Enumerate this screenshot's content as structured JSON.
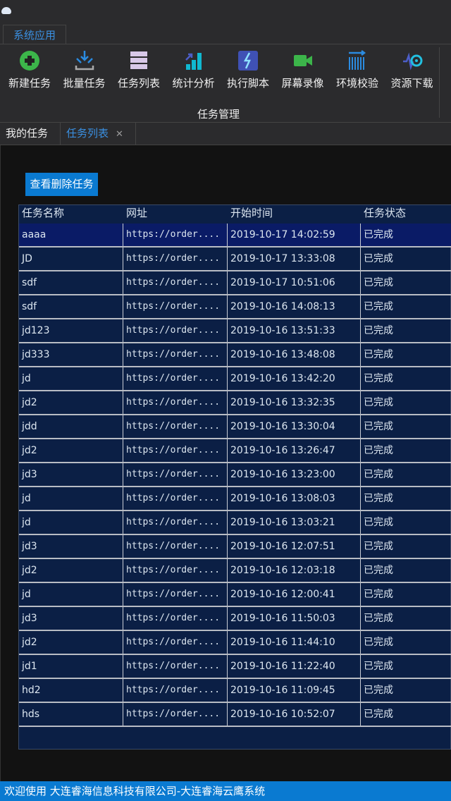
{
  "ribbon": {
    "tab": "系统应用",
    "group": "任务管理",
    "buttons": [
      {
        "label": "新建任务",
        "icon": "plus-circle-icon"
      },
      {
        "label": "批量任务",
        "icon": "batch-import-icon"
      },
      {
        "label": "任务列表",
        "icon": "list-icon"
      },
      {
        "label": "统计分析",
        "icon": "bar-chart-icon"
      },
      {
        "label": "执行脚本",
        "icon": "lightning-icon"
      },
      {
        "label": "屏幕录像",
        "icon": "video-camera-icon"
      },
      {
        "label": "环境校验",
        "icon": "check-env-icon"
      },
      {
        "label": "资源下载",
        "icon": "download-icon"
      }
    ]
  },
  "doc_tabs": [
    {
      "label": "我的任务"
    },
    {
      "label": "任务列表",
      "active": true
    }
  ],
  "delete_button": "查看删除任务",
  "table": {
    "columns": [
      "任务名称",
      "网址",
      "开始时间",
      "任务状态"
    ],
    "rows": [
      [
        "aaaa",
        "https://order....",
        "2019-10-17 14:02:59",
        "已完成"
      ],
      [
        "JD",
        "https://order....",
        "2019-10-17 13:33:08",
        "已完成"
      ],
      [
        "sdf",
        "https://order....",
        "2019-10-17 10:51:06",
        "已完成"
      ],
      [
        "sdf",
        "https://order....",
        "2019-10-16 14:08:13",
        "已完成"
      ],
      [
        "jd123",
        "https://order....",
        "2019-10-16 13:51:33",
        "已完成"
      ],
      [
        "jd333",
        "https://order....",
        "2019-10-16 13:48:08",
        "已完成"
      ],
      [
        "jd",
        "https://order....",
        "2019-10-16 13:42:20",
        "已完成"
      ],
      [
        "jd2",
        "https://order....",
        "2019-10-16 13:32:35",
        "已完成"
      ],
      [
        "jdd",
        "https://order....",
        "2019-10-16 13:30:04",
        "已完成"
      ],
      [
        "jd2",
        "https://order....",
        "2019-10-16 13:26:47",
        "已完成"
      ],
      [
        "jd3",
        "https://order....",
        "2019-10-16 13:23:00",
        "已完成"
      ],
      [
        "jd",
        "https://order....",
        "2019-10-16 13:08:03",
        "已完成"
      ],
      [
        "jd",
        "https://order....",
        "2019-10-16 13:03:21",
        "已完成"
      ],
      [
        "jd3",
        "https://order....",
        "2019-10-16 12:07:51",
        "已完成"
      ],
      [
        "jd2",
        "https://order....",
        "2019-10-16 12:03:18",
        "已完成"
      ],
      [
        "jd",
        "https://order....",
        "2019-10-16 12:00:41",
        "已完成"
      ],
      [
        "jd3",
        "https://order....",
        "2019-10-16 11:50:03",
        "已完成"
      ],
      [
        "jd2",
        "https://order....",
        "2019-10-16 11:44:10",
        "已完成"
      ],
      [
        "jd1",
        "https://order....",
        "2019-10-16 11:22:40",
        "已完成"
      ],
      [
        "hd2",
        "https://order....",
        "2019-10-16 11:09:45",
        "已完成"
      ],
      [
        "hds",
        "https://order....",
        "2019-10-16 10:52:07",
        "已完成"
      ]
    ]
  },
  "status_bar": "欢迎使用 大连睿海信息科技有限公司-大连睿海云鹰系统",
  "colors": {
    "accent": "#0a7ad1",
    "grid_bg": "#0b1f45",
    "selected_row": "#0a1b66"
  }
}
